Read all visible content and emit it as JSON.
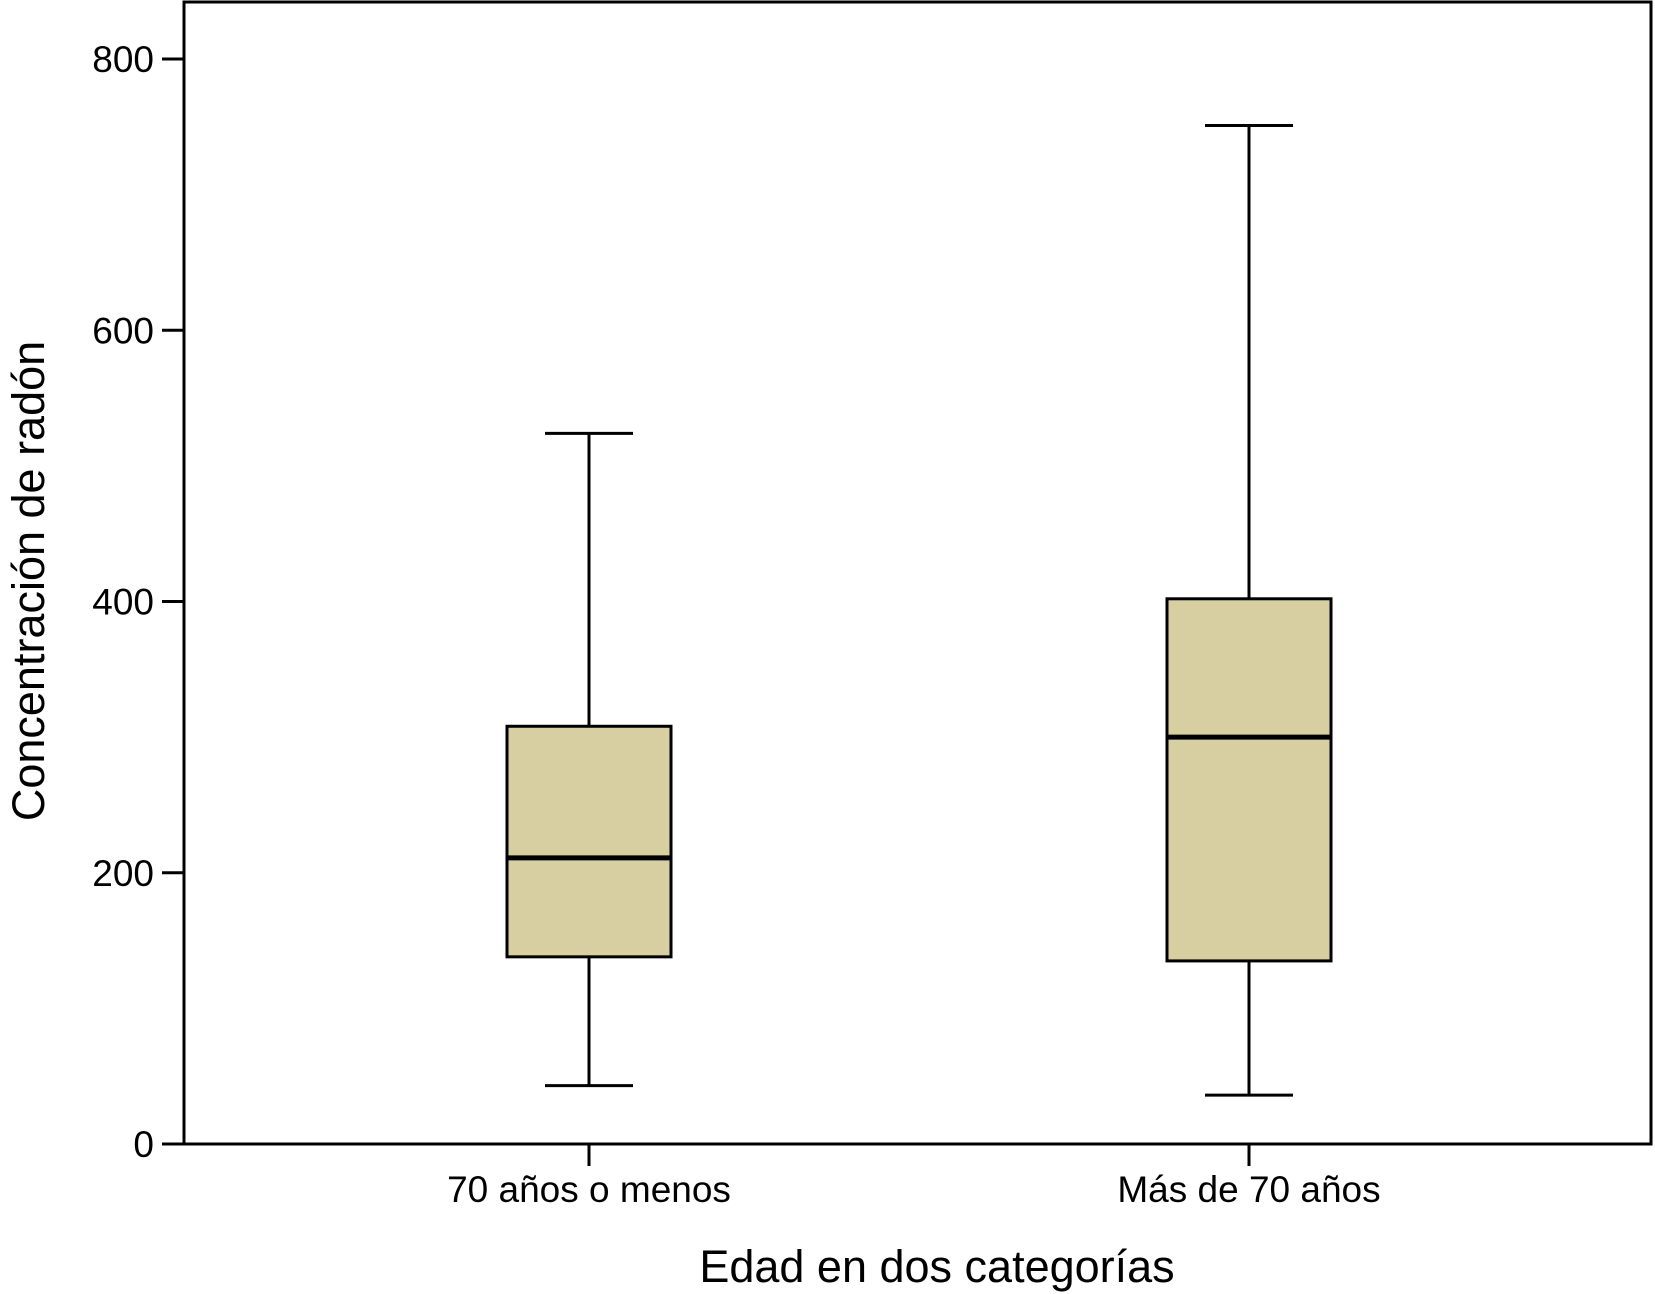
{
  "chart_data": {
    "type": "box",
    "title": "",
    "xlabel": "Edad en dos categorías",
    "ylabel": "Concentración de radón",
    "ylim": [
      0,
      800
    ],
    "yticks": [
      0,
      200,
      400,
      600,
      800
    ],
    "grid": false,
    "legend": "none",
    "categories": [
      "70 años o menos",
      "Más de 70 años"
    ],
    "boxes": [
      {
        "category": "70 años o menos",
        "whisker_low": 43,
        "q1": 138,
        "median": 211,
        "q3": 308,
        "whisker_high": 524
      },
      {
        "category": "Más de 70 años",
        "whisker_low": 36,
        "q1": 135,
        "median": 300,
        "q3": 402,
        "whisker_high": 751
      }
    ],
    "box_fill_color": "#d7cfa2",
    "line_color": "#000000"
  }
}
